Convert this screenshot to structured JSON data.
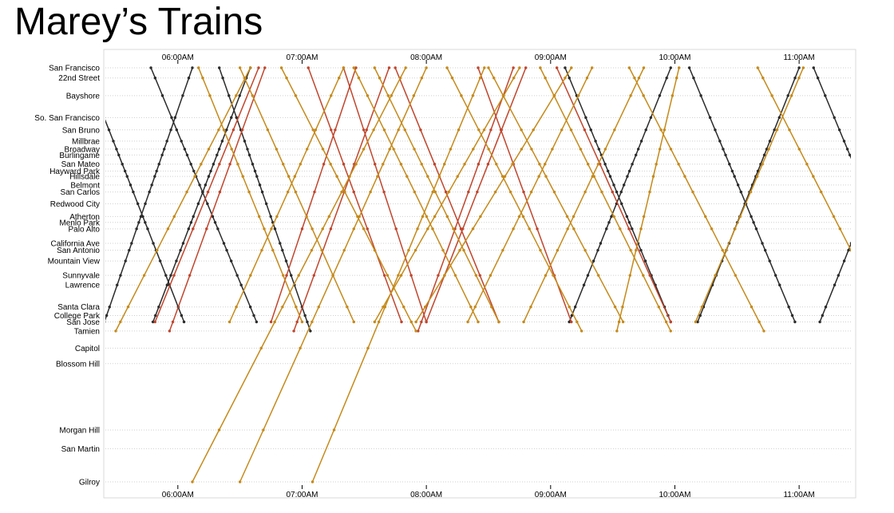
{
  "title": "Marey’s Trains",
  "chart_data": {
    "type": "line",
    "title": "Marey’s Trains",
    "xlabel": "",
    "ylabel": "",
    "x_axis": "time of day",
    "y_axis": "station (distance from San Francisco, miles)",
    "xlim": [
      "05:25",
      "11:25"
    ],
    "x_ticks": [
      "06:00AM",
      "07:00AM",
      "08:00AM",
      "09:00AM",
      "10:00AM",
      "11:00AM"
    ],
    "x_tick_positions": [
      "top",
      "bottom"
    ],
    "grid": "dotted horizontal line per station",
    "colors": {
      "local": "#2b2b2b",
      "limited": "#c58a1a",
      "bullet": "#c0452c"
    },
    "stations": [
      {
        "name": "San Francisco",
        "distance": 0.0
      },
      {
        "name": "22nd Street",
        "distance": 1.9
      },
      {
        "name": "Bayshore",
        "distance": 5.2
      },
      {
        "name": "So. San Francisco",
        "distance": 9.3
      },
      {
        "name": "San Bruno",
        "distance": 11.6
      },
      {
        "name": "Millbrae",
        "distance": 13.7
      },
      {
        "name": "Broadway",
        "distance": 15.2
      },
      {
        "name": "Burlingame",
        "distance": 16.3
      },
      {
        "name": "San Mateo",
        "distance": 18.0
      },
      {
        "name": "Hayward Park",
        "distance": 19.3
      },
      {
        "name": "Hillsdale",
        "distance": 20.3
      },
      {
        "name": "Belmont",
        "distance": 21.9
      },
      {
        "name": "San Carlos",
        "distance": 23.2
      },
      {
        "name": "Redwood City",
        "distance": 25.4
      },
      {
        "name": "Atherton",
        "distance": 27.8
      },
      {
        "name": "Menlo Park",
        "distance": 28.9
      },
      {
        "name": "Palo Alto",
        "distance": 30.1
      },
      {
        "name": "California Ave",
        "distance": 32.8
      },
      {
        "name": "San Antonio",
        "distance": 34.1
      },
      {
        "name": "Mountain View",
        "distance": 36.1
      },
      {
        "name": "Sunnyvale",
        "distance": 38.8
      },
      {
        "name": "Lawrence",
        "distance": 40.6
      },
      {
        "name": "Santa Clara",
        "distance": 44.7
      },
      {
        "name": "College Park",
        "distance": 46.3
      },
      {
        "name": "San Jose",
        "distance": 47.5
      },
      {
        "name": "Tamien",
        "distance": 49.2
      },
      {
        "name": "Capitol",
        "distance": 52.4
      },
      {
        "name": "Blossom Hill",
        "distance": 55.3
      },
      {
        "name": "Morgan Hill",
        "distance": 67.7
      },
      {
        "name": "San Martin",
        "distance": 71.2
      },
      {
        "name": "Gilroy",
        "distance": 77.4
      }
    ],
    "trains": [
      {
        "type": "local",
        "direction": "N",
        "from": "Tamien",
        "to": "San Francisco",
        "depart": "05:23",
        "arrive": "06:07"
      },
      {
        "type": "local",
        "direction": "N",
        "from": "San Jose",
        "to": "San Francisco",
        "depart": "05:48",
        "arrive": "06:35"
      },
      {
        "type": "local",
        "direction": "S",
        "from": "San Francisco",
        "to": "San Jose",
        "depart": "05:15",
        "arrive": "06:03"
      },
      {
        "type": "local",
        "direction": "S",
        "from": "San Francisco",
        "to": "San Jose",
        "depart": "05:47",
        "arrive": "06:38"
      },
      {
        "type": "local",
        "direction": "S",
        "from": "San Francisco",
        "to": "Tamien",
        "depart": "06:20",
        "arrive": "07:04"
      },
      {
        "type": "local",
        "direction": "S",
        "from": "San Francisco",
        "to": "San Jose",
        "depart": "09:07",
        "arrive": "09:58"
      },
      {
        "type": "local",
        "direction": "N",
        "from": "San Jose",
        "to": "San Francisco",
        "depart": "09:09",
        "arrive": "09:58"
      },
      {
        "type": "local",
        "direction": "N",
        "from": "San Jose",
        "to": "San Francisco",
        "depart": "10:11",
        "arrive": "11:00"
      },
      {
        "type": "local",
        "direction": "S",
        "from": "San Francisco",
        "to": "San Jose",
        "depart": "10:07",
        "arrive": "10:58"
      },
      {
        "type": "local",
        "direction": "S",
        "from": "San Francisco",
        "to": "San Jose",
        "depart": "11:07",
        "arrive": "11:58"
      },
      {
        "type": "local",
        "direction": "N",
        "from": "San Jose",
        "to": "San Francisco",
        "depart": "11:10",
        "arrive": "11:59"
      },
      {
        "type": "bullet",
        "direction": "N",
        "from": "San Jose",
        "to": "San Francisco",
        "depart": "05:49",
        "arrive": "06:39"
      },
      {
        "type": "bullet",
        "direction": "N",
        "from": "Tamien",
        "to": "San Francisco",
        "depart": "05:56",
        "arrive": "06:42"
      },
      {
        "type": "bullet",
        "direction": "N",
        "from": "San Jose",
        "to": "San Francisco",
        "depart": "06:45",
        "arrive": "07:26"
      },
      {
        "type": "bullet",
        "direction": "N",
        "from": "Tamien",
        "to": "San Francisco",
        "depart": "06:56",
        "arrive": "07:42"
      },
      {
        "type": "bullet",
        "direction": "N",
        "from": "Tamien",
        "to": "San Francisco",
        "depart": "07:56",
        "arrive": "08:42"
      },
      {
        "type": "bullet",
        "direction": "S",
        "from": "San Francisco",
        "to": "San Jose",
        "depart": "07:03",
        "arrive": "07:48"
      },
      {
        "type": "bullet",
        "direction": "S",
        "from": "San Francisco",
        "to": "San Jose",
        "depart": "07:20",
        "arrive": "08:00"
      },
      {
        "type": "bullet",
        "direction": "S",
        "from": "San Francisco",
        "to": "San Jose",
        "depart": "07:45",
        "arrive": "08:35"
      },
      {
        "type": "bullet",
        "direction": "S",
        "from": "San Francisco",
        "to": "San Jose",
        "depart": "08:25",
        "arrive": "09:10"
      },
      {
        "type": "bullet",
        "direction": "S",
        "from": "San Francisco",
        "to": "San Jose",
        "depart": "09:03",
        "arrive": "09:58"
      },
      {
        "type": "bullet",
        "direction": "N",
        "from": "San Jose",
        "to": "San Francisco",
        "depart": "08:00",
        "arrive": "08:48"
      },
      {
        "type": "limited",
        "direction": "S",
        "from": "San Francisco",
        "to": "San Jose",
        "depart": "06:10",
        "arrive": "07:00"
      },
      {
        "type": "limited",
        "direction": "S",
        "from": "San Francisco",
        "to": "San Jose",
        "depart": "06:30",
        "arrive": "07:25"
      },
      {
        "type": "limited",
        "direction": "S",
        "from": "San Francisco",
        "to": "Tamien",
        "depart": "06:50",
        "arrive": "07:55"
      },
      {
        "type": "limited",
        "direction": "S",
        "from": "San Francisco",
        "to": "San Jose",
        "depart": "07:25",
        "arrive": "08:25"
      },
      {
        "type": "limited",
        "direction": "S",
        "from": "San Francisco",
        "to": "San Jose",
        "depart": "07:35",
        "arrive": "08:35"
      },
      {
        "type": "limited",
        "direction": "S",
        "from": "San Francisco",
        "to": "Tamien",
        "depart": "08:10",
        "arrive": "09:15"
      },
      {
        "type": "limited",
        "direction": "S",
        "from": "San Francisco",
        "to": "San Jose",
        "depart": "08:30",
        "arrive": "09:35"
      },
      {
        "type": "limited",
        "direction": "S",
        "from": "San Francisco",
        "to": "Tamien",
        "depart": "08:55",
        "arrive": "09:58"
      },
      {
        "type": "limited",
        "direction": "S",
        "from": "San Francisco",
        "to": "Tamien",
        "depart": "09:38",
        "arrive": "10:43"
      },
      {
        "type": "limited",
        "direction": "S",
        "from": "San Francisco",
        "to": "Tamien",
        "depart": "10:40",
        "arrive": "11:45"
      },
      {
        "type": "limited",
        "direction": "N",
        "from": "Tamien",
        "to": "San Francisco",
        "depart": "05:30",
        "arrive": "06:35"
      },
      {
        "type": "limited",
        "direction": "N",
        "from": "San Jose",
        "to": "San Francisco",
        "depart": "06:25",
        "arrive": "07:20"
      },
      {
        "type": "limited",
        "direction": "N",
        "from": "Gilroy",
        "to": "San Francisco",
        "depart": "06:07",
        "arrive": "07:50"
      },
      {
        "type": "limited",
        "direction": "N",
        "from": "Gilroy",
        "to": "San Francisco",
        "depart": "06:30",
        "arrive": "08:00"
      },
      {
        "type": "limited",
        "direction": "N",
        "from": "Gilroy",
        "to": "San Francisco",
        "depart": "07:05",
        "arrive": "08:28"
      },
      {
        "type": "limited",
        "direction": "N",
        "from": "San Jose",
        "to": "San Francisco",
        "depart": "07:35",
        "arrive": "08:45"
      },
      {
        "type": "limited",
        "direction": "N",
        "from": "San Jose",
        "to": "San Francisco",
        "depart": "07:55",
        "arrive": "09:10"
      },
      {
        "type": "limited",
        "direction": "N",
        "from": "San Jose",
        "to": "San Francisco",
        "depart": "08:20",
        "arrive": "09:20"
      },
      {
        "type": "limited",
        "direction": "N",
        "from": "San Jose",
        "to": "San Francisco",
        "depart": "08:47",
        "arrive": "09:45"
      },
      {
        "type": "limited",
        "direction": "N",
        "from": "Tamien",
        "to": "San Francisco",
        "depart": "09:32",
        "arrive": "10:02"
      },
      {
        "type": "limited",
        "direction": "N",
        "from": "San Jose",
        "to": "San Francisco",
        "depart": "10:10",
        "arrive": "11:02"
      }
    ]
  }
}
